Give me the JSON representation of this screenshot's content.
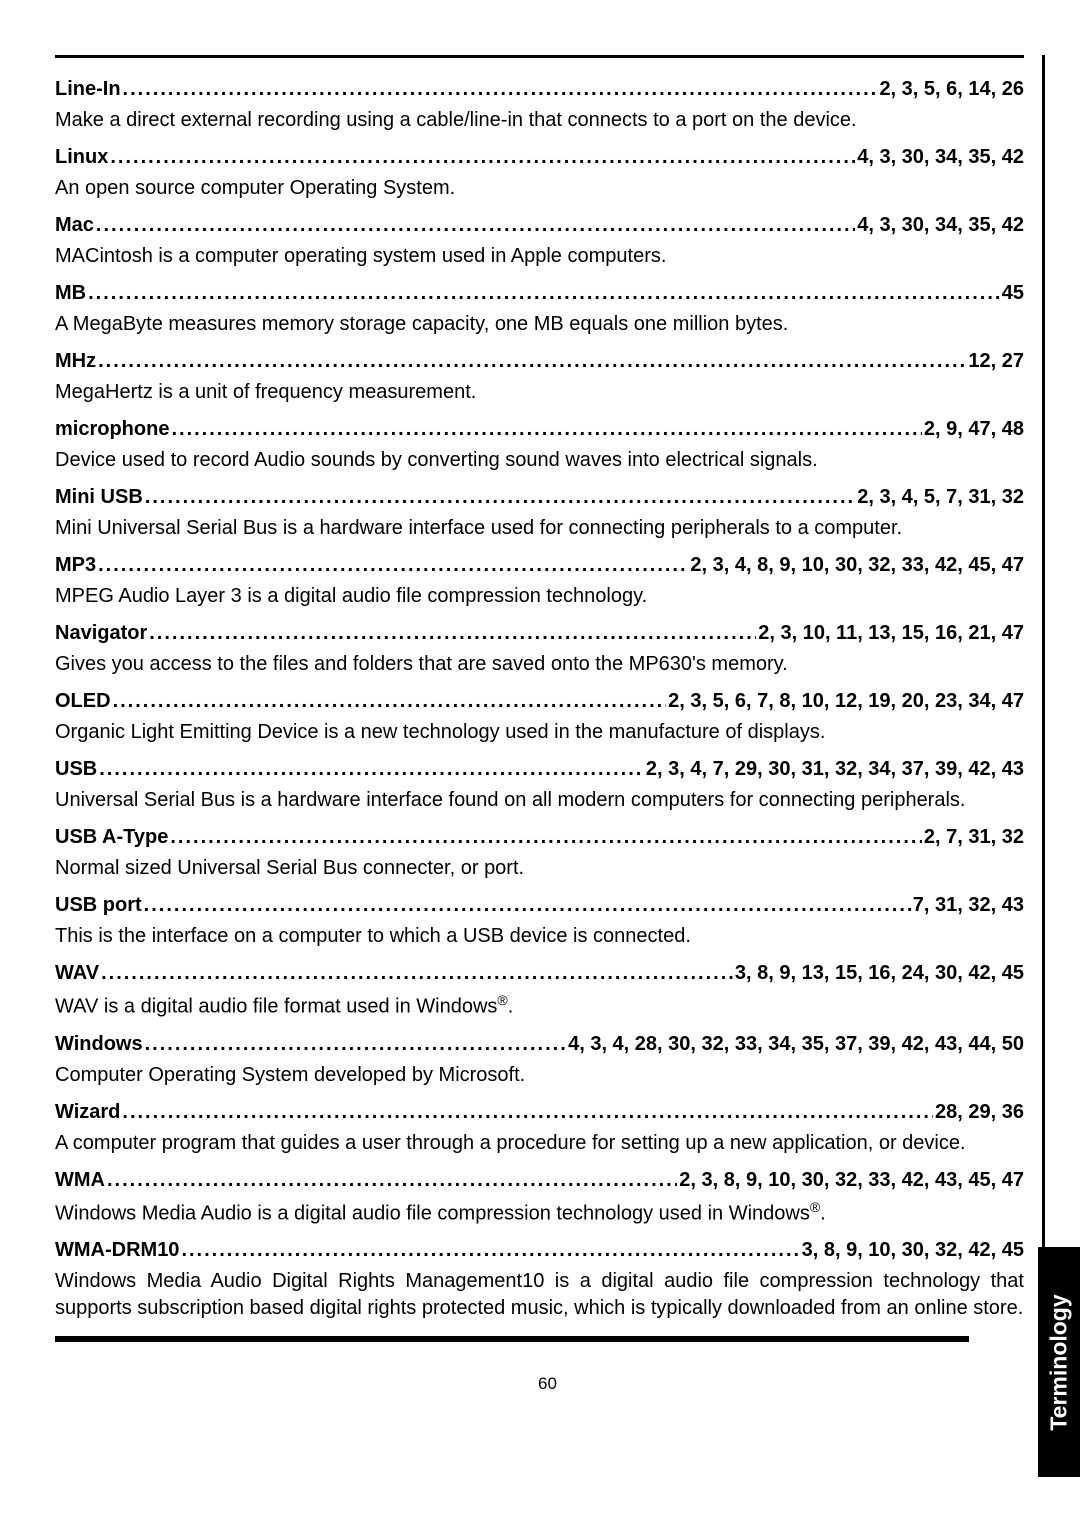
{
  "page_number": "60",
  "side_tab": "Terminology",
  "entries": [
    {
      "term": "Line-In",
      "pages": "2, 3, 5, 6, 14, 26",
      "definition": "Make a direct external recording using a cable/line-in that connects to a port on the device."
    },
    {
      "term": "Linux",
      "pages": "4, 3, 30, 34, 35, 42",
      "definition": "An open source computer Operating System."
    },
    {
      "term": "Mac",
      "pages": "4, 3, 30, 34, 35, 42",
      "definition": "MACintosh is a computer operating system used in Apple computers."
    },
    {
      "term": "MB",
      "pages": "45",
      "definition": "A MegaByte measures memory storage capacity, one MB equals one million bytes."
    },
    {
      "term": "MHz",
      "pages": "12, 27",
      "definition": "MegaHertz is a unit of frequency measurement."
    },
    {
      "term": "microphone",
      "pages": "2, 9, 47, 48",
      "definition": "Device used to record Audio sounds by converting sound waves into electrical signals."
    },
    {
      "term": "Mini USB",
      "pages": "2, 3, 4, 5, 7, 31, 32",
      "definition": "Mini Universal Serial Bus is a hardware interface used for connecting peripherals to a computer."
    },
    {
      "term": "MP3",
      "pages": "2, 3, 4, 8, 9, 10, 30, 32, 33, 42, 45, 47",
      "definition": "MPEG Audio Layer 3 is a digital audio file compression technology."
    },
    {
      "term": "Navigator",
      "pages": "2, 3, 10, 11, 13, 15, 16, 21, 47",
      "definition": "Gives you access to the files and folders that are saved onto the MP630's memory."
    },
    {
      "term": "OLED",
      "pages": "2, 3, 5, 6, 7, 8, 10, 12, 19, 20, 23, 34, 47",
      "definition": "Organic Light Emitting Device is a new technology used in the manufacture of displays."
    },
    {
      "term": "USB",
      "pages": "2, 3, 4, 7, 29, 30, 31, 32, 34, 37, 39, 42, 43",
      "definition": "Universal Serial Bus is a hardware interface found on all modern computers for connecting peripherals."
    },
    {
      "term": "USB A-Type",
      "pages": "2, 7, 31, 32",
      "definition": "Normal sized Universal Serial Bus connecter, or port."
    },
    {
      "term": "USB port",
      "pages": "7, 31, 32, 43",
      "definition": "This is the interface on a computer to which a USB device is connected."
    },
    {
      "term": "WAV",
      "pages": "3, 8, 9, 13, 15, 16, 24, 30, 42, 45",
      "definition": "WAV is a digital audio file format used in Windows<span class=\"reg\">®</span>."
    },
    {
      "term": "Windows",
      "pages": "4, 3, 4, 28, 30, 32, 33, 34, 35, 37, 39, 42, 43, 44, 50",
      "definition": "Computer Operating System developed by Microsoft."
    },
    {
      "term": "Wizard",
      "pages": "28, 29, 36",
      "definition": "A computer program that guides a user through a procedure for setting up a new application, or device."
    },
    {
      "term": "WMA",
      "pages": "2, 3, 8, 9, 10, 30, 32, 33, 42, 43, 45, 47",
      "definition": "Windows Media Audio is a digital audio file compression technology used in Windows<span class=\"reg\">®</span>."
    },
    {
      "term": "WMA-DRM10",
      "pages": "3, 8, 9, 10, 30, 32, 42, 45",
      "definition": "Windows Media Audio Digital Rights Management10 is a digital audio file compression technology that supports subscription based digital rights protected music, which is typically downloaded from an online store."
    }
  ]
}
